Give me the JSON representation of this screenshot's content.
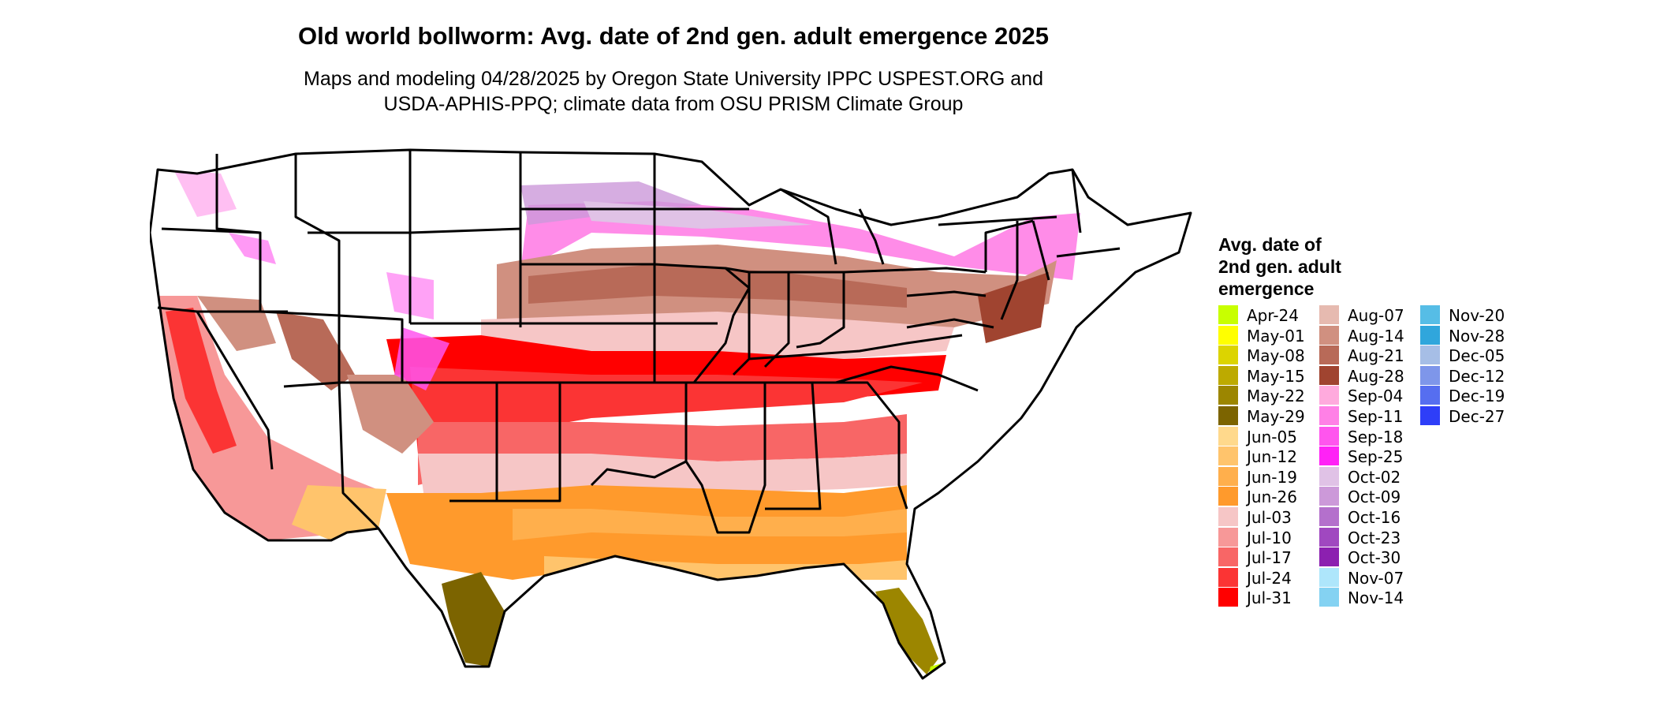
{
  "title": "Old world bollworm: Avg. date of 2nd gen. adult emergence 2025",
  "subtitle_line1": "Maps and modeling 04/28/2025 by Oregon State University IPPC USPEST.ORG and",
  "subtitle_line2": "USDA-APHIS-PPQ; climate data from OSU PRISM Climate Group",
  "legend": {
    "title_lines": [
      "Avg. date of",
      "2nd gen. adult",
      "emergence"
    ],
    "items": [
      {
        "label": "Apr-24",
        "color": "#c8ff00"
      },
      {
        "label": "May-01",
        "color": "#ffff00"
      },
      {
        "label": "May-08",
        "color": "#dcd400"
      },
      {
        "label": "May-15",
        "color": "#bdaa00"
      },
      {
        "label": "May-22",
        "color": "#9c8600"
      },
      {
        "label": "May-29",
        "color": "#7c6400"
      },
      {
        "label": "Jun-05",
        "color": "#ffd98c"
      },
      {
        "label": "Jun-12",
        "color": "#ffc46c"
      },
      {
        "label": "Jun-19",
        "color": "#ffaf4c"
      },
      {
        "label": "Jun-26",
        "color": "#ff9a2c"
      },
      {
        "label": "Jul-03",
        "color": "#f6c6c6"
      },
      {
        "label": "Jul-10",
        "color": "#f79898"
      },
      {
        "label": "Jul-17",
        "color": "#f86666"
      },
      {
        "label": "Jul-24",
        "color": "#fb3434"
      },
      {
        "label": "Jul-31",
        "color": "#ff0000"
      },
      {
        "label": "Aug-07",
        "color": "#e6bab0"
      },
      {
        "label": "Aug-14",
        "color": "#d09080"
      },
      {
        "label": "Aug-21",
        "color": "#b86a58"
      },
      {
        "label": "Aug-28",
        "color": "#a04430"
      },
      {
        "label": "Sep-04",
        "color": "#ffaadd"
      },
      {
        "label": "Sep-11",
        "color": "#ff80e6"
      },
      {
        "label": "Sep-18",
        "color": "#ff55ee"
      },
      {
        "label": "Sep-25",
        "color": "#ff22f6"
      },
      {
        "label": "Oct-02",
        "color": "#e0c2e6"
      },
      {
        "label": "Oct-09",
        "color": "#cc99d9"
      },
      {
        "label": "Oct-16",
        "color": "#b470cc"
      },
      {
        "label": "Oct-23",
        "color": "#a048c0"
      },
      {
        "label": "Oct-30",
        "color": "#8c20b0"
      },
      {
        "label": "Nov-07",
        "color": "#aee6fb"
      },
      {
        "label": "Nov-14",
        "color": "#84d2f2"
      },
      {
        "label": "Nov-20",
        "color": "#56bde6"
      },
      {
        "label": "Nov-28",
        "color": "#30a6dc"
      },
      {
        "label": "Dec-05",
        "color": "#a6bee6"
      },
      {
        "label": "Dec-12",
        "color": "#7e96ea"
      },
      {
        "label": "Dec-19",
        "color": "#566ef0"
      },
      {
        "label": "Dec-27",
        "color": "#2e3ef8"
      }
    ]
  }
}
